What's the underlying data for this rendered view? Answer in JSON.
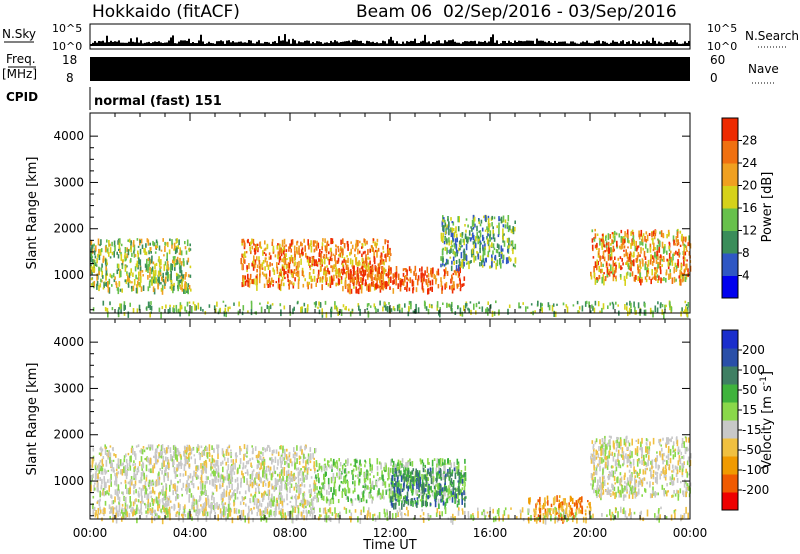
{
  "header": {
    "station": "Hokkaido (fitACF)",
    "beam_date": "Beam 06  02/Sep/2016 - 03/Sep/2016"
  },
  "labels": {
    "nsky": "N.Sky",
    "nsearch": "N.Search",
    "freq": "Freq.",
    "freq_unit": "[MHz]",
    "nave": "Nave",
    "cpid": "CPID",
    "cpid_value": "normal (fast) 151",
    "noise_ticks_left": [
      "10^5",
      "10^0"
    ],
    "noise_ticks_right": [
      "10^5",
      "10^0"
    ],
    "freq_ticks": [
      "18",
      "8"
    ],
    "nave_ticks": [
      "60",
      "0"
    ]
  },
  "chart_data": [
    {
      "type": "heatmap",
      "name": "power",
      "ylabel": "Slant Range [km]",
      "xlabel": "",
      "ylim": [
        180,
        4500
      ],
      "yticks": [
        "4000",
        "3000",
        "2000",
        "1000"
      ],
      "colorbar": {
        "label": "Power [dB]",
        "ticks": [
          "28",
          "24",
          "20",
          "16",
          "12",
          "8",
          "4"
        ],
        "range": [
          0,
          30
        ],
        "colors": [
          "#0000ee",
          "#2f57c4",
          "#3a8d5a",
          "#67c04b",
          "#d6d21a",
          "#f0a020",
          "#f07010",
          "#ee2a00"
        ]
      },
      "echo_regions": [
        {
          "t": [
            0,
            4
          ],
          "r": [
            700,
            1800
          ],
          "level": "12-20"
        },
        {
          "t": [
            6,
            12
          ],
          "r": [
            800,
            1800
          ],
          "level": "20-28"
        },
        {
          "t": [
            10,
            15
          ],
          "r": [
            700,
            1200
          ],
          "level": "24-30"
        },
        {
          "t": [
            14,
            17
          ],
          "r": [
            1200,
            2300
          ],
          "level": "12-20"
        },
        {
          "t": [
            20,
            24
          ],
          "r": [
            900,
            2000
          ],
          "level": "16-28"
        }
      ]
    },
    {
      "type": "heatmap",
      "name": "velocity",
      "ylabel": "Slant Range [km]",
      "xlabel": "Time UT",
      "ylim": [
        180,
        4500
      ],
      "yticks": [
        "4000",
        "3000",
        "2000",
        "1000"
      ],
      "xticks": [
        "00:00",
        "04:00",
        "08:00",
        "12:00",
        "16:00",
        "20:00",
        "00:00"
      ],
      "colorbar": {
        "label": "Velocity [m s",
        "label_sup": "-1",
        "label_end": "]",
        "ticks": [
          "200",
          "100",
          "50",
          "15",
          "-15",
          "-50",
          "-100",
          "-200"
        ],
        "range": [
          -250,
          250
        ],
        "colors": [
          "#ee0000",
          "#f05a00",
          "#f09a00",
          "#f0c040",
          "#c8c8c8",
          "#8ad84a",
          "#3fb33c",
          "#3f7f63",
          "#2a4fa8",
          "#1a2ecc"
        ]
      },
      "echo_regions": [
        {
          "t": [
            0,
            9
          ],
          "r": [
            300,
            1800
          ],
          "v": "-15..15"
        },
        {
          "t": [
            9,
            15
          ],
          "r": [
            600,
            1500
          ],
          "v": "15..100"
        },
        {
          "t": [
            12,
            15
          ],
          "r": [
            500,
            1300
          ],
          "v": "50..100"
        },
        {
          "t": [
            17.5,
            20
          ],
          "r": [
            200,
            700
          ],
          "v": "-50..-100"
        },
        {
          "t": [
            20,
            24
          ],
          "r": [
            700,
            2000
          ],
          "v": "-15..15"
        }
      ]
    }
  ],
  "colors": {
    "axis": "#000000",
    "noise_fill": "#000000"
  }
}
